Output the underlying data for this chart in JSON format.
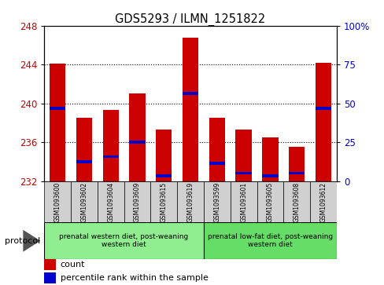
{
  "title": "GDS5293 / ILMN_1251822",
  "samples": [
    "GSM1093600",
    "GSM1093602",
    "GSM1093604",
    "GSM1093609",
    "GSM1093615",
    "GSM1093619",
    "GSM1093599",
    "GSM1093601",
    "GSM1093605",
    "GSM1093608",
    "GSM1093612"
  ],
  "bar_values": [
    244.1,
    238.5,
    239.3,
    241.0,
    237.3,
    246.8,
    238.5,
    237.3,
    236.5,
    235.5,
    244.2
  ],
  "blue_values": [
    239.5,
    234.0,
    234.5,
    236.0,
    232.5,
    241.0,
    233.8,
    232.8,
    232.5,
    232.8,
    239.5
  ],
  "ymin": 232,
  "ymax": 248,
  "yticks": [
    232,
    236,
    240,
    244,
    248
  ],
  "y2min": 0,
  "y2max": 100,
  "y2ticks": [
    0,
    25,
    50,
    75,
    100
  ],
  "bar_color": "#cc0000",
  "blue_color": "#0000cc",
  "group1_label": "prenatal western diet, post-weaning\nwestern diet",
  "group2_label": "prenatal low-fat diet, post-weaning\nwestern diet",
  "group1_count": 6,
  "group2_count": 5,
  "group1_bg": "#90ee90",
  "group2_bg": "#66dd66",
  "protocol_label": "protocol",
  "legend_count": "count",
  "legend_pct": "percentile rank within the sample",
  "bar_width": 0.6,
  "tick_label_color_left": "#cc0000",
  "tick_label_color_right": "#0000cc",
  "sample_box_color": "#d0d0d0"
}
